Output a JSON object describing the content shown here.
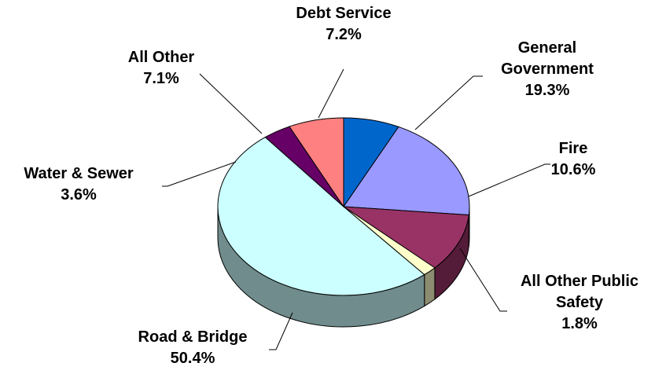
{
  "chart_data": {
    "type": "pie",
    "three_d": true,
    "legend": "none",
    "slices": [
      {
        "label": "Debt Service",
        "label_lines": [
          "Debt Service"
        ],
        "value": 7.2,
        "value_text": "7.2%",
        "color": "#0066cc"
      },
      {
        "label": "General Government",
        "label_lines": [
          "General",
          "Government"
        ],
        "value": 19.3,
        "value_text": "19.3%",
        "color": "#9999ff"
      },
      {
        "label": "Fire",
        "label_lines": [
          "Fire"
        ],
        "value": 10.6,
        "value_text": "10.6%",
        "color": "#993366"
      },
      {
        "label": "All Other Public Safety",
        "label_lines": [
          "All Other Public",
          "Safety"
        ],
        "value": 1.8,
        "value_text": "1.8%",
        "color": "#ffffcc"
      },
      {
        "label": "Road & Bridge",
        "label_lines": [
          "Road & Bridge"
        ],
        "value": 50.4,
        "value_text": "50.4%",
        "color": "#ccffff"
      },
      {
        "label": "Water & Sewer",
        "label_lines": [
          "Water & Sewer"
        ],
        "value": 3.6,
        "value_text": "3.6%",
        "color": "#660066"
      },
      {
        "label": "All Other",
        "label_lines": [
          "All Other"
        ],
        "value": 7.1,
        "value_text": "7.1%",
        "color": "#ff8080"
      }
    ]
  }
}
